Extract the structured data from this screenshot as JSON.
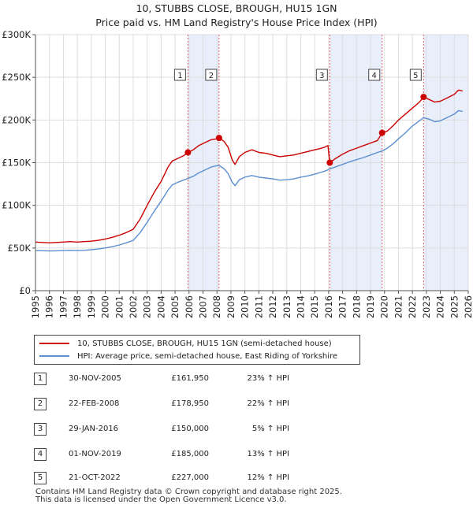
{
  "chart_data": {
    "type": "line",
    "title_lines": [
      "10, STUBBS CLOSE, BROUGH, HU15 1GN",
      "Price paid vs. HM Land Registry's House Price Index (HPI)"
    ],
    "xlim": [
      1995,
      2026
    ],
    "ylim": [
      0,
      300000
    ],
    "x_ticks": [
      1995,
      1996,
      1997,
      1998,
      1999,
      2000,
      2001,
      2002,
      2003,
      2004,
      2005,
      2006,
      2007,
      2008,
      2009,
      2010,
      2011,
      2012,
      2013,
      2014,
      2015,
      2016,
      2017,
      2018,
      2019,
      2020,
      2021,
      2022,
      2023,
      2024,
      2025,
      2026
    ],
    "x_tick_labels": [
      "1995",
      "1996",
      "1997",
      "1998",
      "1999",
      "2000",
      "2001",
      "2002",
      "2003",
      "2004",
      "2005",
      "2006",
      "2007",
      "2008",
      "2009",
      "2010",
      "2011",
      "2012",
      "2013",
      "2014",
      "2015",
      "2016",
      "2017",
      "2018",
      "2019",
      "2020",
      "2021",
      "2022",
      "2023",
      "2024",
      "2025",
      "2026"
    ],
    "y_ticks": [
      0,
      50000,
      100000,
      150000,
      200000,
      250000,
      300000
    ],
    "y_tick_labels": [
      "£0",
      "£50K",
      "£100K",
      "£150K",
      "£200K",
      "£250K",
      "£300K"
    ],
    "grid": true,
    "series": [
      {
        "name": "10, STUBBS CLOSE, BROUGH, HU15 1GN (semi-detached house)",
        "color": "#cc0000",
        "points": [
          [
            1995.0,
            57000
          ],
          [
            1995.5,
            56500
          ],
          [
            1996.0,
            56000
          ],
          [
            1996.5,
            56500
          ],
          [
            1997.0,
            57000
          ],
          [
            1997.5,
            57500
          ],
          [
            1998.0,
            57000
          ],
          [
            1998.5,
            57500
          ],
          [
            1999.0,
            58000
          ],
          [
            1999.5,
            59000
          ],
          [
            2000.0,
            60500
          ],
          [
            2000.5,
            62500
          ],
          [
            2001.0,
            65000
          ],
          [
            2001.5,
            68000
          ],
          [
            2002.0,
            72000
          ],
          [
            2002.5,
            84000
          ],
          [
            2003.0,
            100000
          ],
          [
            2003.5,
            115000
          ],
          [
            2004.0,
            128000
          ],
          [
            2004.5,
            145000
          ],
          [
            2004.8,
            152000
          ],
          [
            2005.2,
            155000
          ],
          [
            2005.6,
            158000
          ],
          [
            2005.92,
            161950
          ],
          [
            2006.3,
            165000
          ],
          [
            2006.7,
            170000
          ],
          [
            2007.2,
            174000
          ],
          [
            2007.6,
            177000
          ],
          [
            2008.0,
            178000
          ],
          [
            2008.15,
            178950
          ],
          [
            2008.5,
            175000
          ],
          [
            2008.8,
            168000
          ],
          [
            2009.1,
            153000
          ],
          [
            2009.3,
            148000
          ],
          [
            2009.6,
            157000
          ],
          [
            2010.0,
            162000
          ],
          [
            2010.5,
            165000
          ],
          [
            2011.0,
            162000
          ],
          [
            2011.5,
            161000
          ],
          [
            2012.0,
            159000
          ],
          [
            2012.5,
            157000
          ],
          [
            2013.0,
            158000
          ],
          [
            2013.5,
            159000
          ],
          [
            2014.0,
            161000
          ],
          [
            2014.5,
            163000
          ],
          [
            2015.0,
            165000
          ],
          [
            2015.4,
            166500
          ],
          [
            2015.7,
            168000
          ],
          [
            2015.95,
            170000
          ],
          [
            2016.08,
            150000
          ],
          [
            2016.5,
            155000
          ],
          [
            2017.0,
            160000
          ],
          [
            2017.5,
            164000
          ],
          [
            2018.0,
            167000
          ],
          [
            2018.5,
            170000
          ],
          [
            2019.0,
            173000
          ],
          [
            2019.5,
            176000
          ],
          [
            2019.83,
            185000
          ],
          [
            2020.2,
            187000
          ],
          [
            2020.6,
            193000
          ],
          [
            2021.0,
            200000
          ],
          [
            2021.5,
            207000
          ],
          [
            2022.0,
            214000
          ],
          [
            2022.5,
            221000
          ],
          [
            2022.8,
            227000
          ],
          [
            2023.2,
            224000
          ],
          [
            2023.6,
            221000
          ],
          [
            2024.0,
            222000
          ],
          [
            2024.5,
            226000
          ],
          [
            2025.0,
            230000
          ],
          [
            2025.3,
            235000
          ],
          [
            2025.6,
            234000
          ]
        ]
      },
      {
        "name": "HPI: Average price, semi-detached house, East Riding of Yorkshire",
        "color": "#5b8fd0",
        "points": [
          [
            1995.0,
            47000
          ],
          [
            1995.5,
            46800
          ],
          [
            1996.0,
            46500
          ],
          [
            1996.5,
            46700
          ],
          [
            1997.0,
            47000
          ],
          [
            1997.5,
            47300
          ],
          [
            1998.0,
            47000
          ],
          [
            1998.5,
            47300
          ],
          [
            1999.0,
            48000
          ],
          [
            1999.5,
            48800
          ],
          [
            2000.0,
            50000
          ],
          [
            2000.5,
            51500
          ],
          [
            2001.0,
            53500
          ],
          [
            2001.5,
            56000
          ],
          [
            2002.0,
            59000
          ],
          [
            2002.5,
            68000
          ],
          [
            2003.0,
            80000
          ],
          [
            2003.5,
            93000
          ],
          [
            2004.0,
            105000
          ],
          [
            2004.5,
            118000
          ],
          [
            2004.8,
            124000
          ],
          [
            2005.2,
            127000
          ],
          [
            2005.6,
            129500
          ],
          [
            2005.92,
            131500
          ],
          [
            2006.3,
            134000
          ],
          [
            2006.7,
            138000
          ],
          [
            2007.2,
            142000
          ],
          [
            2007.6,
            145000
          ],
          [
            2008.0,
            146500
          ],
          [
            2008.15,
            146700
          ],
          [
            2008.5,
            143000
          ],
          [
            2008.8,
            137000
          ],
          [
            2009.1,
            127000
          ],
          [
            2009.3,
            123000
          ],
          [
            2009.6,
            130000
          ],
          [
            2010.0,
            133000
          ],
          [
            2010.5,
            135000
          ],
          [
            2011.0,
            133000
          ],
          [
            2011.5,
            132000
          ],
          [
            2012.0,
            131000
          ],
          [
            2012.5,
            129500
          ],
          [
            2013.0,
            130000
          ],
          [
            2013.5,
            131000
          ],
          [
            2014.0,
            133000
          ],
          [
            2014.5,
            134500
          ],
          [
            2015.0,
            136500
          ],
          [
            2015.4,
            138500
          ],
          [
            2015.7,
            140000
          ],
          [
            2015.95,
            141500
          ],
          [
            2016.08,
            142800
          ],
          [
            2016.5,
            145000
          ],
          [
            2017.0,
            148000
          ],
          [
            2017.5,
            151000
          ],
          [
            2018.0,
            153500
          ],
          [
            2018.5,
            156000
          ],
          [
            2019.0,
            159000
          ],
          [
            2019.5,
            162000
          ],
          [
            2019.83,
            163700
          ],
          [
            2020.2,
            167000
          ],
          [
            2020.6,
            172000
          ],
          [
            2021.0,
            178000
          ],
          [
            2021.5,
            185000
          ],
          [
            2022.0,
            193000
          ],
          [
            2022.5,
            199000
          ],
          [
            2022.8,
            202700
          ],
          [
            2023.2,
            201000
          ],
          [
            2023.6,
            198000
          ],
          [
            2024.0,
            199000
          ],
          [
            2024.5,
            203000
          ],
          [
            2025.0,
            207000
          ],
          [
            2025.3,
            211000
          ],
          [
            2025.6,
            210000
          ]
        ]
      }
    ],
    "sales": [
      {
        "num": "1",
        "x": 2005.92,
        "price_value": 161950,
        "date": "30-NOV-2005",
        "price": "£161,950",
        "hpi": "23% ↑ HPI"
      },
      {
        "num": "2",
        "x": 2008.15,
        "price_value": 178950,
        "date": "22-FEB-2008",
        "price": "£178,950",
        "hpi": "22% ↑ HPI"
      },
      {
        "num": "3",
        "x": 2016.08,
        "price_value": 150000,
        "date": "29-JAN-2016",
        "price": "£150,000",
        "hpi": "5% ↑ HPI"
      },
      {
        "num": "4",
        "x": 2019.83,
        "price_value": 185000,
        "date": "01-NOV-2019",
        "price": "£185,000",
        "hpi": "13% ↑ HPI"
      },
      {
        "num": "5",
        "x": 2022.8,
        "price_value": 227000,
        "date": "21-OCT-2022",
        "price": "£227,000",
        "hpi": "12% ↑ HPI"
      }
    ],
    "shaded_spans": [
      [
        2005.92,
        2008.15
      ],
      [
        2016.08,
        2019.83
      ],
      [
        2022.8,
        2026.0
      ]
    ],
    "legend": {
      "position": "below-chart",
      "entries": [
        {
          "label": "10, STUBBS CLOSE, BROUGH, HU15 1GN (semi-detached house)",
          "color": "#cc0000"
        },
        {
          "label": "HPI: Average price, semi-detached house, East Riding of Yorkshire",
          "color": "#5b8fd0"
        }
      ]
    }
  },
  "footer": {
    "line1": "Contains HM Land Registry data © Crown copyright and database right 2025.",
    "line2": "This data is licensed under the Open Government Licence v3.0."
  },
  "colors": {
    "plot_background": "#ffffff",
    "grid": "#dddddd",
    "shade": "#e8eefa",
    "sale_marker_line": "#e06060"
  }
}
